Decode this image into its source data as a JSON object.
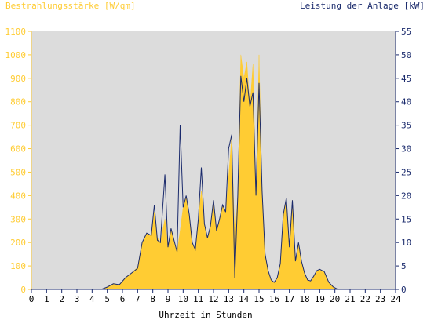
{
  "chart_data": {
    "type": "area",
    "title_left": "Bestrahlungsstärke [W/qm]",
    "title_right": "Leistung der Anlage [kW]",
    "xlabel": "Uhrzeit in Stunden",
    "x_ticks": [
      "0",
      "1",
      "2",
      "3",
      "4",
      "5",
      "6",
      "7",
      "8",
      "9",
      "10",
      "11",
      "12",
      "13",
      "14",
      "15",
      "16",
      "17",
      "18",
      "19",
      "20",
      "21",
      "22",
      "23",
      "24"
    ],
    "xlim": [
      0,
      24
    ],
    "y_left_ticks": [
      "0",
      "100",
      "200",
      "300",
      "400",
      "500",
      "600",
      "700",
      "800",
      "900",
      "1000",
      "1100"
    ],
    "y_left_lim": [
      0,
      1100
    ],
    "y_right_ticks": [
      "0",
      "5",
      "10",
      "15",
      "20",
      "25",
      "30",
      "35",
      "40",
      "45",
      "50",
      "55"
    ],
    "y_right_lim": [
      0,
      55
    ],
    "grid": false,
    "series": [
      {
        "name": "Bestrahlungsstärke [W/qm]",
        "axis": "left",
        "color": "#ffcc33",
        "style": "filled",
        "x": [
          0,
          4.6,
          5.0,
          5.4,
          5.8,
          6.2,
          6.6,
          7.0,
          7.3,
          7.6,
          7.9,
          8.1,
          8.3,
          8.5,
          8.8,
          9.0,
          9.2,
          9.4,
          9.6,
          9.8,
          10.0,
          10.2,
          10.4,
          10.6,
          10.8,
          11.0,
          11.2,
          11.4,
          11.6,
          11.8,
          12.0,
          12.2,
          12.4,
          12.6,
          12.8,
          13.0,
          13.2,
          13.4,
          13.6,
          13.8,
          14.0,
          14.2,
          14.4,
          14.6,
          14.8,
          15.0,
          15.2,
          15.4,
          15.6,
          15.8,
          16.0,
          16.2,
          16.4,
          16.6,
          16.8,
          17.0,
          17.2,
          17.4,
          17.6,
          17.8,
          18.0,
          18.2,
          18.4,
          18.6,
          18.8,
          19.0,
          19.3,
          19.6,
          19.9,
          20.2,
          20.5,
          20.8,
          24
        ],
        "y": [
          0,
          0,
          10,
          25,
          20,
          50,
          70,
          95,
          200,
          240,
          230,
          330,
          220,
          200,
          300,
          180,
          260,
          210,
          160,
          250,
          350,
          400,
          320,
          200,
          170,
          300,
          420,
          280,
          220,
          270,
          380,
          250,
          300,
          360,
          330,
          480,
          650,
          220,
          400,
          1000,
          900,
          970,
          780,
          960,
          400,
          1000,
          420,
          150,
          80,
          40,
          30,
          50,
          110,
          320,
          390,
          180,
          380,
          120,
          200,
          120,
          70,
          40,
          35,
          55,
          80,
          85,
          75,
          30,
          10,
          0,
          0,
          0,
          0
        ]
      },
      {
        "name": "Leistung der Anlage [kW]",
        "axis": "right",
        "color": "#1a2a6c",
        "style": "line",
        "x": [
          0,
          4.6,
          5.0,
          5.4,
          5.8,
          6.2,
          6.6,
          7.0,
          7.3,
          7.6,
          7.9,
          8.1,
          8.3,
          8.5,
          8.8,
          9.0,
          9.2,
          9.4,
          9.6,
          9.8,
          10.0,
          10.2,
          10.4,
          10.6,
          10.8,
          11.0,
          11.2,
          11.4,
          11.6,
          11.8,
          12.0,
          12.2,
          12.4,
          12.6,
          12.8,
          13.0,
          13.2,
          13.4,
          13.6,
          13.8,
          14.0,
          14.2,
          14.4,
          14.6,
          14.8,
          15.0,
          15.2,
          15.4,
          15.6,
          15.8,
          16.0,
          16.2,
          16.4,
          16.6,
          16.8,
          17.0,
          17.2,
          17.4,
          17.6,
          17.8,
          18.0,
          18.2,
          18.4,
          18.6,
          18.8,
          19.0,
          19.3,
          19.6,
          19.9,
          20.2,
          20.5,
          20.8,
          24
        ],
        "y": [
          0,
          0,
          0.5,
          1.2,
          1.0,
          2.5,
          3.5,
          4.5,
          10,
          12,
          11.5,
          18,
          10.5,
          10,
          24.5,
          9,
          13,
          10.5,
          8,
          35,
          17.5,
          20,
          16,
          10,
          8.5,
          15,
          26,
          14,
          11,
          13.5,
          19,
          12.5,
          15,
          18,
          16.5,
          30,
          33,
          2.5,
          20,
          45.5,
          40,
          45,
          39,
          42,
          20,
          44,
          21,
          7.5,
          4,
          2,
          1.5,
          2.5,
          5.5,
          16,
          19.5,
          9,
          19,
          6,
          10,
          6,
          3.5,
          2,
          1.8,
          2.8,
          4,
          4.3,
          3.8,
          1.5,
          0.5,
          0,
          0,
          0,
          0
        ]
      }
    ]
  }
}
